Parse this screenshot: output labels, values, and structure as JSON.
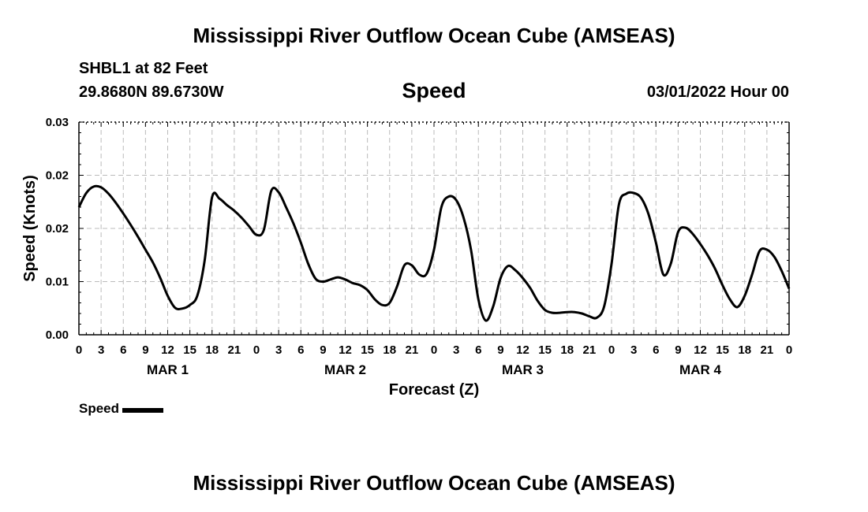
{
  "title": "Mississippi River Outflow Ocean Cube (AMSEAS)",
  "title_bottom": "Mississippi River Outflow Ocean Cube (AMSEAS)",
  "station": "SHBL1 at 82 Feet",
  "coords": "29.8680N  89.6730W",
  "param": "Speed",
  "date": "03/01/2022 Hour 00",
  "chart_data": {
    "type": "line",
    "title": "Speed",
    "xlabel": "Forecast (Z)",
    "ylabel": "Speed (Knots)",
    "xlim": [
      0,
      96
    ],
    "ylim": [
      0,
      0.03
    ],
    "yticks": [
      "0.00",
      "0.01",
      "0.02",
      "0.02",
      "0.03"
    ],
    "yticks_values": [
      0,
      0.0075,
      0.015,
      0.0225,
      0.03
    ],
    "xticks": [
      "0",
      "3",
      "6",
      "9",
      "12",
      "15",
      "18",
      "21",
      "0",
      "3",
      "6",
      "9",
      "12",
      "15",
      "18",
      "21",
      "0",
      "3",
      "6",
      "9",
      "12",
      "15",
      "18",
      "21",
      "0",
      "3",
      "6",
      "9",
      "12",
      "15",
      "18",
      "21",
      "0"
    ],
    "day_labels": [
      {
        "label": "MAR 1",
        "hour": 12
      },
      {
        "label": "MAR 2",
        "hour": 36
      },
      {
        "label": "MAR 3",
        "hour": 60
      },
      {
        "label": "MAR 4",
        "hour": 84
      }
    ],
    "grid": true,
    "legend": "bottom-left",
    "series": [
      {
        "name": "Speed",
        "color": "#000000",
        "x": [
          0,
          1,
          2,
          3,
          4,
          5,
          6,
          7,
          8,
          9,
          10,
          11,
          12,
          13,
          14,
          15,
          16,
          17,
          18,
          19,
          20,
          21,
          22,
          23,
          24,
          25,
          26,
          27,
          28,
          29,
          30,
          31,
          32,
          33,
          34,
          35,
          36,
          37,
          38,
          39,
          40,
          41,
          42,
          43,
          44,
          45,
          46,
          47,
          48,
          49,
          50,
          51,
          52,
          53,
          54,
          55,
          56,
          57,
          58,
          59,
          60,
          61,
          62,
          63,
          64,
          65,
          66,
          67,
          68,
          69,
          70,
          71,
          72,
          73,
          74,
          75,
          76,
          77,
          78,
          79,
          80,
          81,
          82,
          83,
          84,
          85,
          86,
          87,
          88,
          89,
          90,
          91,
          92,
          93,
          94,
          95,
          96
        ],
        "values": [
          0.018,
          0.02,
          0.0209,
          0.0208,
          0.0199,
          0.0186,
          0.0171,
          0.0155,
          0.0138,
          0.012,
          0.0102,
          0.008,
          0.0055,
          0.0038,
          0.0037,
          0.0042,
          0.0055,
          0.0105,
          0.0194,
          0.0192,
          0.0183,
          0.0175,
          0.0165,
          0.0153,
          0.0141,
          0.0148,
          0.0203,
          0.0201,
          0.018,
          0.0157,
          0.013,
          0.01,
          0.0079,
          0.0075,
          0.0078,
          0.0081,
          0.0078,
          0.0073,
          0.007,
          0.0063,
          0.005,
          0.0042,
          0.0045,
          0.0068,
          0.0098,
          0.0098,
          0.0085,
          0.0086,
          0.012,
          0.018,
          0.0195,
          0.019,
          0.0165,
          0.012,
          0.005,
          0.002,
          0.004,
          0.008,
          0.0097,
          0.0091,
          0.008,
          0.0066,
          0.0048,
          0.0035,
          0.0031,
          0.0031,
          0.0032,
          0.0032,
          0.003,
          0.0026,
          0.0024,
          0.004,
          0.01,
          0.0184,
          0.0199,
          0.02,
          0.0193,
          0.017,
          0.013,
          0.0085,
          0.01,
          0.0145,
          0.0151,
          0.0142,
          0.0128,
          0.0112,
          0.0093,
          0.007,
          0.005,
          0.0039,
          0.0055,
          0.0085,
          0.0118,
          0.012,
          0.011,
          0.009,
          0.0065
        ]
      }
    ]
  },
  "legend_label": "Speed"
}
